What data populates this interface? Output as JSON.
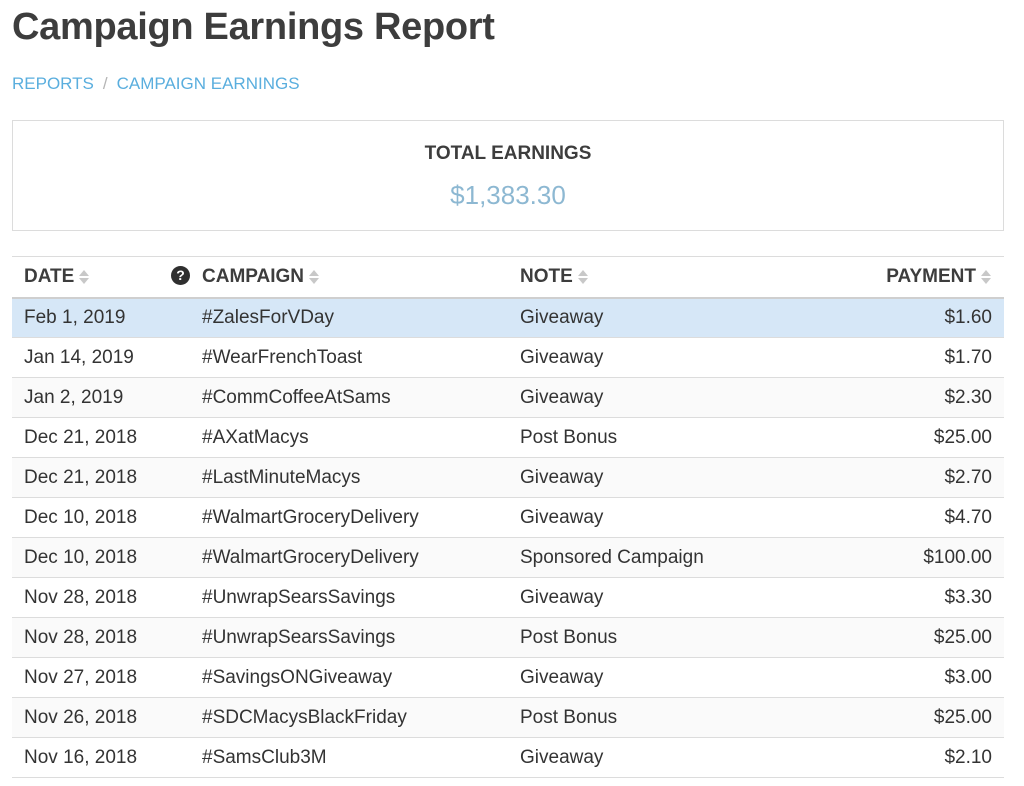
{
  "page": {
    "title": "Campaign Earnings Report"
  },
  "breadcrumb": {
    "items": [
      {
        "label": "REPORTS"
      },
      {
        "label": "CAMPAIGN EARNINGS"
      }
    ],
    "separator": "/"
  },
  "summary": {
    "label": "TOTAL EARNINGS",
    "value": "$1,383.30"
  },
  "table": {
    "columns": {
      "date": "DATE",
      "help": "?",
      "campaign": "CAMPAIGN",
      "note": "NOTE",
      "payment": "PAYMENT"
    },
    "rows": [
      {
        "date": "Feb 1, 2019",
        "campaign": "#ZalesForVDay",
        "note": "Giveaway",
        "payment": "$1.60"
      },
      {
        "date": "Jan 14, 2019",
        "campaign": "#WearFrenchToast",
        "note": "Giveaway",
        "payment": "$1.70"
      },
      {
        "date": "Jan 2, 2019",
        "campaign": "#CommCoffeeAtSams",
        "note": "Giveaway",
        "payment": "$2.30"
      },
      {
        "date": "Dec 21, 2018",
        "campaign": "#AXatMacys",
        "note": "Post Bonus",
        "payment": "$25.00"
      },
      {
        "date": "Dec 21, 2018",
        "campaign": "#LastMinuteMacys",
        "note": "Giveaway",
        "payment": "$2.70"
      },
      {
        "date": "Dec 10, 2018",
        "campaign": "#WalmartGroceryDelivery",
        "note": "Giveaway",
        "payment": "$4.70"
      },
      {
        "date": "Dec 10, 2018",
        "campaign": "#WalmartGroceryDelivery",
        "note": "Sponsored Campaign",
        "payment": "$100.00"
      },
      {
        "date": "Nov 28, 2018",
        "campaign": "#UnwrapSearsSavings",
        "note": "Giveaway",
        "payment": "$3.30"
      },
      {
        "date": "Nov 28, 2018",
        "campaign": "#UnwrapSearsSavings",
        "note": "Post Bonus",
        "payment": "$25.00"
      },
      {
        "date": "Nov 27, 2018",
        "campaign": "#SavingsONGiveaway",
        "note": "Giveaway",
        "payment": "$3.00"
      },
      {
        "date": "Nov 26, 2018",
        "campaign": "#SDCMacysBlackFriday",
        "note": "Post Bonus",
        "payment": "$25.00"
      },
      {
        "date": "Nov 16, 2018",
        "campaign": "#SamsClub3M",
        "note": "Giveaway",
        "payment": "$2.10"
      }
    ]
  },
  "colors": {
    "link": "#5aaede",
    "total_value": "#8db8d2",
    "selected_row": "#d6e7f7",
    "title": "#3d3d3d"
  },
  "icons": {
    "help": "question-circle-icon",
    "sort": "sort-both-icon"
  }
}
